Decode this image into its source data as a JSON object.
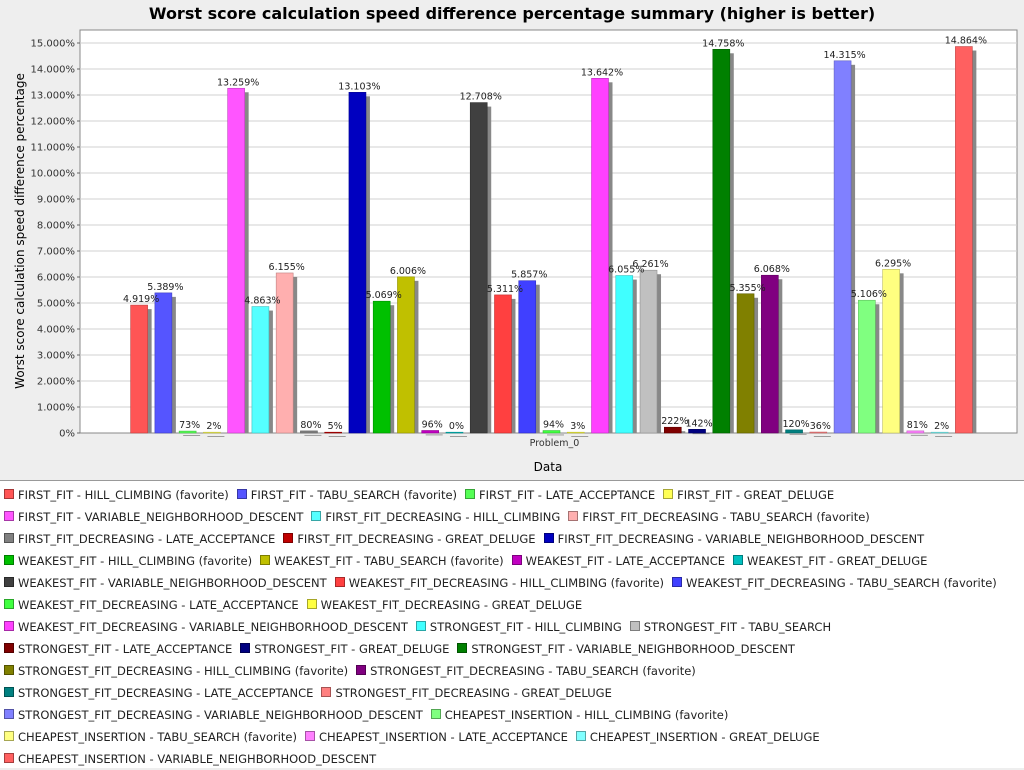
{
  "chart_data": {
    "type": "bar",
    "title": "Worst score calculation speed difference percentage summary (higher is better)",
    "xlabel": "Data",
    "ylabel": "Worst score calculation speed difference percentage",
    "categories": [
      "Problem_0"
    ],
    "ylim": [
      0,
      15.5
    ],
    "yticks": [
      "0%",
      "1.000%",
      "2.000%",
      "3.000%",
      "4.000%",
      "5.000%",
      "6.000%",
      "7.000%",
      "8.000%",
      "9.000%",
      "10.000%",
      "11.000%",
      "12.000%",
      "13.000%",
      "14.000%",
      "15.000%"
    ],
    "ytick_values": [
      0,
      1,
      2,
      3,
      4,
      5,
      6,
      7,
      8,
      9,
      10,
      11,
      12,
      13,
      14,
      15
    ],
    "grid": true,
    "legend_position": "bottom",
    "series": [
      {
        "name": "FIRST_FIT - HILL_CLIMBING (favorite)",
        "color": "#ff5555",
        "value": 4.919,
        "label": "4.919%"
      },
      {
        "name": "FIRST_FIT - TABU_SEARCH (favorite)",
        "color": "#5555ff",
        "value": 5.389,
        "label": "5.389%"
      },
      {
        "name": "FIRST_FIT - LATE_ACCEPTANCE",
        "color": "#55ff55",
        "value": 0.073,
        "label": "73%"
      },
      {
        "name": "FIRST_FIT - GREAT_DELUGE",
        "color": "#ffff55",
        "value": 0.002,
        "label": "2%"
      },
      {
        "name": "FIRST_FIT - VARIABLE_NEIGHBORHOOD_DESCENT",
        "color": "#ff55ff",
        "value": 13.259,
        "label": "13.259%"
      },
      {
        "name": "FIRST_FIT_DECREASING - HILL_CLIMBING",
        "color": "#55ffff",
        "value": 4.863,
        "label": "4.863%"
      },
      {
        "name": "FIRST_FIT_DECREASING - TABU_SEARCH (favorite)",
        "color": "#ffafaf",
        "value": 6.155,
        "label": "6.155%"
      },
      {
        "name": "FIRST_FIT_DECREASING - LATE_ACCEPTANCE",
        "color": "#808080",
        "value": 0.08,
        "label": "80%"
      },
      {
        "name": "FIRST_FIT_DECREASING - GREAT_DELUGE",
        "color": "#c00000",
        "value": 0.005,
        "label": "5%"
      },
      {
        "name": "FIRST_FIT_DECREASING - VARIABLE_NEIGHBORHOOD_DESCENT",
        "color": "#0000c0",
        "value": 13.103,
        "label": "13.103%"
      },
      {
        "name": "WEAKEST_FIT - HILL_CLIMBING (favorite)",
        "color": "#00c000",
        "value": 5.069,
        "label": "5.069%"
      },
      {
        "name": "WEAKEST_FIT - TABU_SEARCH (favorite)",
        "color": "#c0c000",
        "value": 6.006,
        "label": "6.006%"
      },
      {
        "name": "WEAKEST_FIT - LATE_ACCEPTANCE",
        "color": "#c000c0",
        "value": 0.096,
        "label": "96%"
      },
      {
        "name": "WEAKEST_FIT - GREAT_DELUGE",
        "color": "#00c0c0",
        "value": 0.0,
        "label": "0%"
      },
      {
        "name": "WEAKEST_FIT - VARIABLE_NEIGHBORHOOD_DESCENT",
        "color": "#404040",
        "value": 12.708,
        "label": "12.708%"
      },
      {
        "name": "WEAKEST_FIT_DECREASING - HILL_CLIMBING (favorite)",
        "color": "#ff4040",
        "value": 5.311,
        "label": "5.311%"
      },
      {
        "name": "WEAKEST_FIT_DECREASING - TABU_SEARCH (favorite)",
        "color": "#4040ff",
        "value": 5.857,
        "label": "5.857%"
      },
      {
        "name": "WEAKEST_FIT_DECREASING - LATE_ACCEPTANCE",
        "color": "#40ff40",
        "value": 0.094,
        "label": "94%"
      },
      {
        "name": "WEAKEST_FIT_DECREASING - GREAT_DELUGE",
        "color": "#ffff40",
        "value": 0.003,
        "label": "3%"
      },
      {
        "name": "WEAKEST_FIT_DECREASING - VARIABLE_NEIGHBORHOOD_DESCENT",
        "color": "#ff40ff",
        "value": 13.642,
        "label": "13.642%"
      },
      {
        "name": "STRONGEST_FIT - HILL_CLIMBING",
        "color": "#40ffff",
        "value": 6.055,
        "label": "6.055%"
      },
      {
        "name": "STRONGEST_FIT - TABU_SEARCH",
        "color": "#c0c0c0",
        "value": 6.261,
        "label": "6.261%"
      },
      {
        "name": "STRONGEST_FIT - LATE_ACCEPTANCE",
        "color": "#800000",
        "value": 0.222,
        "label": "222%"
      },
      {
        "name": "STRONGEST_FIT - GREAT_DELUGE",
        "color": "#000080",
        "value": 0.142,
        "label": "142%"
      },
      {
        "name": "STRONGEST_FIT - VARIABLE_NEIGHBORHOOD_DESCENT",
        "color": "#008000",
        "value": 14.758,
        "label": "14.758%"
      },
      {
        "name": "STRONGEST_FIT_DECREASING - HILL_CLIMBING (favorite)",
        "color": "#808000",
        "value": 5.355,
        "label": "5.355%"
      },
      {
        "name": "STRONGEST_FIT_DECREASING - TABU_SEARCH (favorite)",
        "color": "#800080",
        "value": 6.068,
        "label": "6.068%"
      },
      {
        "name": "STRONGEST_FIT_DECREASING - LATE_ACCEPTANCE",
        "color": "#008080",
        "value": 0.12,
        "label": "120%"
      },
      {
        "name": "STRONGEST_FIT_DECREASING - GREAT_DELUGE",
        "color": "#ff8080",
        "value": 0.036,
        "label": "36%"
      },
      {
        "name": "STRONGEST_FIT_DECREASING - VARIABLE_NEIGHBORHOOD_DESCENT",
        "color": "#8080ff",
        "value": 14.315,
        "label": "14.315%"
      },
      {
        "name": "CHEAPEST_INSERTION - HILL_CLIMBING (favorite)",
        "color": "#80ff80",
        "value": 5.106,
        "label": "5.106%"
      },
      {
        "name": "CHEAPEST_INSERTION - TABU_SEARCH (favorite)",
        "color": "#ffff80",
        "value": 6.295,
        "label": "6.295%"
      },
      {
        "name": "CHEAPEST_INSERTION - LATE_ACCEPTANCE",
        "color": "#ff80ff",
        "value": 0.081,
        "label": "81%"
      },
      {
        "name": "CHEAPEST_INSERTION - GREAT_DELUGE",
        "color": "#80ffff",
        "value": 0.002,
        "label": "2%"
      },
      {
        "name": "CHEAPEST_INSERTION - VARIABLE_NEIGHBORHOOD_DESCENT",
        "color": "#ff6060",
        "value": 14.864,
        "label": "14.864%"
      }
    ]
  }
}
